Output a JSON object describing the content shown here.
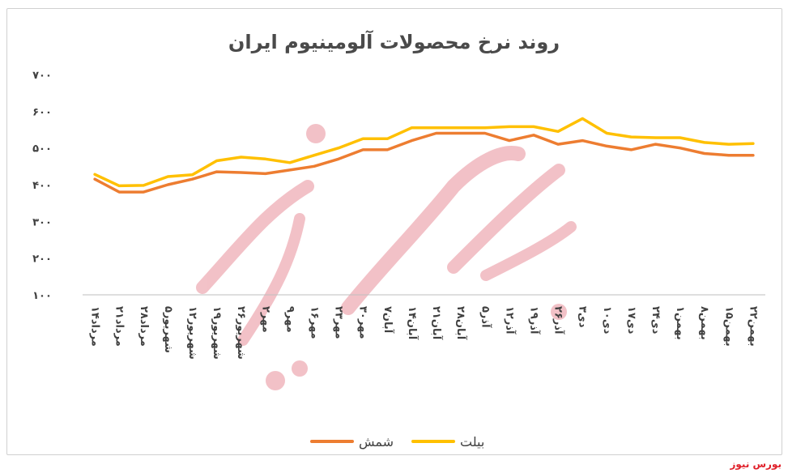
{
  "chart_data": {
    "type": "line",
    "title": "روند نرخ محصولات آلومینیوم ایران",
    "xlabel": "",
    "ylabel": "",
    "ylim": [
      100,
      700
    ],
    "yticks": [
      "۷۰۰",
      "۶۰۰",
      "۵۰۰",
      "۴۰۰",
      "۳۰۰",
      "۲۰۰",
      "۱۰۰"
    ],
    "ytick_values": [
      700,
      600,
      500,
      400,
      300,
      200,
      100
    ],
    "grid": false,
    "legend_position": "bottom",
    "categories": [
      "۱۴مرداد",
      "۲۱مرداد",
      "۲۸مرداد",
      "۵شهریور",
      "۱۲شهریور",
      "۱۹شهریور",
      "۲۶شهریور",
      "۲مهر",
      "۹مهر",
      "۱۶مهر",
      "۲۳مهر",
      "۳۰مهر",
      "۷آبان",
      "۱۴آبان",
      "۲۱آبان",
      "۲۸آبان",
      "۵آذر",
      "۱۲آذر",
      "۱۹آذر",
      "۲۶آذر",
      "۳دی",
      "۱۰دی",
      "۱۷دی",
      "۲۴دی",
      "۱بهمن",
      "۸بهمن",
      "۱۵بهمن",
      "۲۲بهمن"
    ],
    "series": [
      {
        "name": "شمش",
        "color": "#ed7d31",
        "values": [
          415,
          380,
          380,
          400,
          415,
          435,
          433,
          430,
          440,
          450,
          470,
          495,
          495,
          520,
          540,
          540,
          540,
          520,
          535,
          510,
          520,
          505,
          495,
          510,
          500,
          485,
          480,
          480
        ]
      },
      {
        "name": "بیلت",
        "color": "#ffc000",
        "values": [
          428,
          397,
          398,
          422,
          427,
          465,
          475,
          470,
          460,
          480,
          500,
          525,
          525,
          555,
          555,
          555,
          555,
          558,
          558,
          545,
          580,
          540,
          530,
          528,
          528,
          515,
          510,
          512
        ]
      }
    ]
  },
  "watermark": "بورس نیوز",
  "colors": {
    "axis": "#bfbfbf",
    "text": "#404040",
    "stamp": "#e8909a"
  }
}
